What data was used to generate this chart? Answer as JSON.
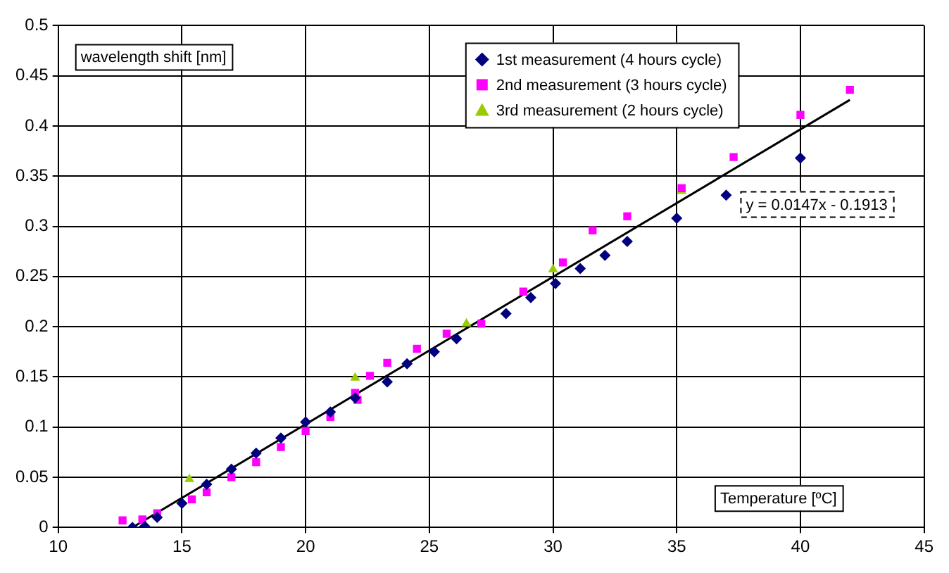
{
  "chart_data": {
    "type": "scatter",
    "xlabel": "Temperature [ºC]",
    "ylabel": "wavelength shift [nm]",
    "xlim": [
      10,
      45
    ],
    "xticks": [
      10,
      15,
      20,
      25,
      30,
      35,
      40,
      45
    ],
    "ylim": [
      0,
      0.5
    ],
    "yticks": [
      0,
      0.05,
      0.1,
      0.15,
      0.2,
      0.25,
      0.3,
      0.35,
      0.4,
      0.45,
      0.5
    ],
    "grid": true,
    "legend": "top right",
    "annotations": [
      "y = 0.0147x - 0.1913"
    ],
    "series": [
      {
        "name": "1st measurement (4 hours cycle)",
        "color": "#000080",
        "marker": "diamond",
        "x": [
          13,
          13.5,
          14,
          15,
          16,
          17,
          18,
          19,
          20,
          21,
          22,
          23.3,
          24.1,
          25.2,
          26.1,
          28.1,
          29.1,
          30.1,
          31.1,
          32.1,
          33,
          35,
          37,
          40
        ],
        "values": [
          0,
          0.001,
          0.01,
          0.024,
          0.043,
          0.058,
          0.074,
          0.089,
          0.105,
          0.115,
          0.129,
          0.145,
          0.163,
          0.175,
          0.188,
          0.213,
          0.229,
          0.243,
          0.258,
          0.271,
          0.285,
          0.308,
          0.331,
          0.368
        ]
      },
      {
        "name": "2nd measurement (3 hours cycle)",
        "color": "#ff00ff",
        "marker": "square",
        "x": [
          12.6,
          13.4,
          14,
          15.4,
          16,
          17,
          18,
          19,
          20,
          21,
          22,
          22.1,
          22.6,
          23.3,
          24.5,
          25.7,
          27.1,
          28.8,
          30.4,
          31.6,
          33,
          35.2,
          37.3,
          40,
          42
        ],
        "values": [
          0.007,
          0.008,
          0.014,
          0.028,
          0.035,
          0.05,
          0.065,
          0.08,
          0.096,
          0.11,
          0.134,
          0.127,
          0.151,
          0.164,
          0.178,
          0.193,
          0.203,
          0.235,
          0.264,
          0.296,
          0.31,
          0.338,
          0.369,
          0.411,
          0.436
        ]
      },
      {
        "name": "3rd measurement (2 hours cycle)",
        "color": "#99cc00",
        "marker": "triangle",
        "x": [
          15.3,
          22,
          26.5,
          30,
          35.2
        ],
        "values": [
          0.048,
          0.149,
          0.203,
          0.257,
          0.335
        ]
      },
      {
        "type": "line",
        "color": "#000000",
        "marker": "none",
        "x": [
          13,
          42
        ],
        "values": [
          0,
          0.426
        ]
      }
    ]
  }
}
